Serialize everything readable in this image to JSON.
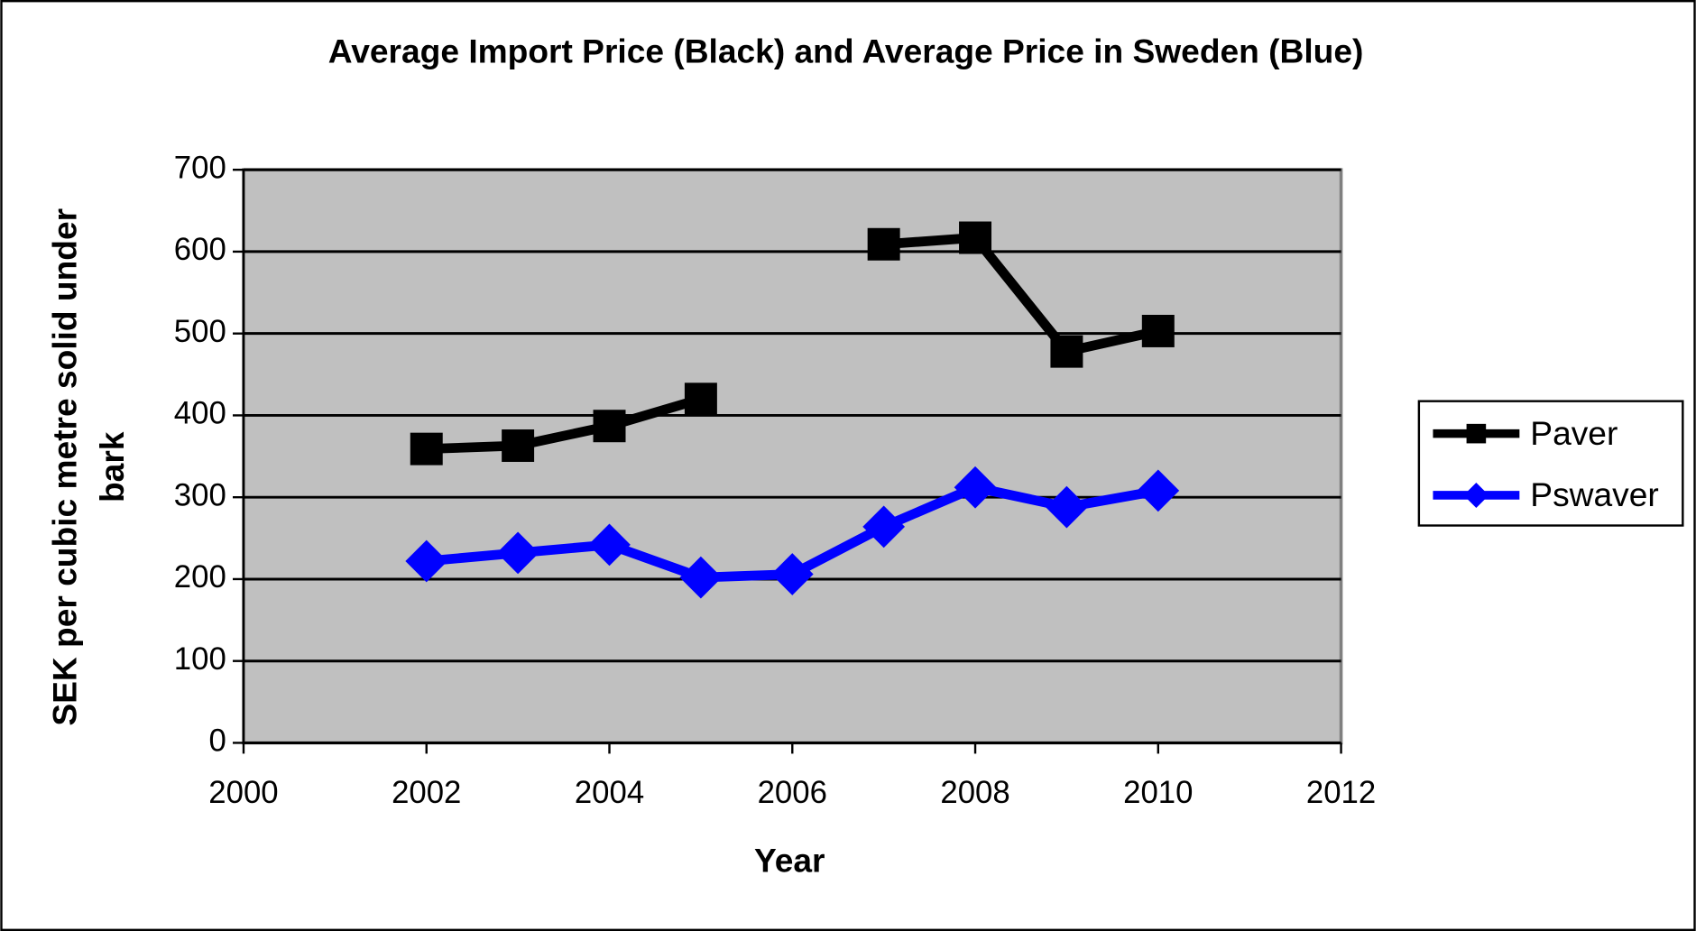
{
  "chart_data": {
    "type": "line",
    "title": "Average Import Price (Black) and Average Price in Sweden (Blue)",
    "xlabel": "Year",
    "ylabel": [
      "SEK per cubic metre solid under",
      "bark"
    ],
    "x": [
      2002,
      2003,
      2004,
      2005,
      2006,
      2007,
      2008,
      2009,
      2010
    ],
    "series": [
      {
        "name": "Paver",
        "color": "#000000",
        "marker": "square",
        "values": [
          359,
          363,
          387,
          420,
          null,
          609,
          617,
          478,
          503
        ]
      },
      {
        "name": "Pswaver",
        "color": "#0000ff",
        "marker": "diamond",
        "values": [
          222,
          232,
          242,
          202,
          206,
          264,
          312,
          288,
          308
        ]
      }
    ],
    "xlim": [
      2000,
      2012
    ],
    "xticks": [
      2000,
      2002,
      2004,
      2006,
      2008,
      2010,
      2012
    ],
    "ylim": [
      0,
      700
    ],
    "yticks": [
      0,
      100,
      200,
      300,
      400,
      500,
      600,
      700
    ],
    "grid": true,
    "legend": "right",
    "background": "#c0c0c0"
  }
}
